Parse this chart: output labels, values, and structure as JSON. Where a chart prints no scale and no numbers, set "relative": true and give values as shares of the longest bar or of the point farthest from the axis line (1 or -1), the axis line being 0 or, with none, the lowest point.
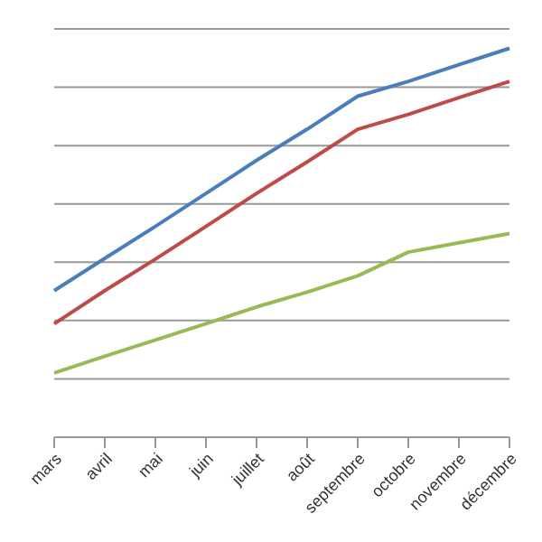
{
  "chart_data": {
    "type": "line",
    "relative": true,
    "categories": [
      "mars",
      "avril",
      "mai",
      "juin",
      "juillet",
      "août",
      "septembre",
      "octobre",
      "novembre",
      "décembre"
    ],
    "series": [
      {
        "color": "#4a7ebb",
        "values": [
          0.377,
          0.46,
          0.542,
          0.627,
          0.712,
          0.792,
          0.877,
          0.915,
          0.958,
          1
        ]
      },
      {
        "color": "#be4b48",
        "values": [
          0.292,
          0.377,
          0.458,
          0.542,
          0.627,
          0.708,
          0.792,
          0.83,
          0.873,
          0.915
        ]
      },
      {
        "color": "#98b954",
        "values": [
          0.165,
          0.208,
          0.25,
          0.292,
          0.335,
          0.373,
          0.415,
          0.476,
          0.5,
          0.524
        ]
      }
    ],
    "grid": "y",
    "tick_labels": "x",
    "marker": "none",
    "line_style": "solid"
  }
}
